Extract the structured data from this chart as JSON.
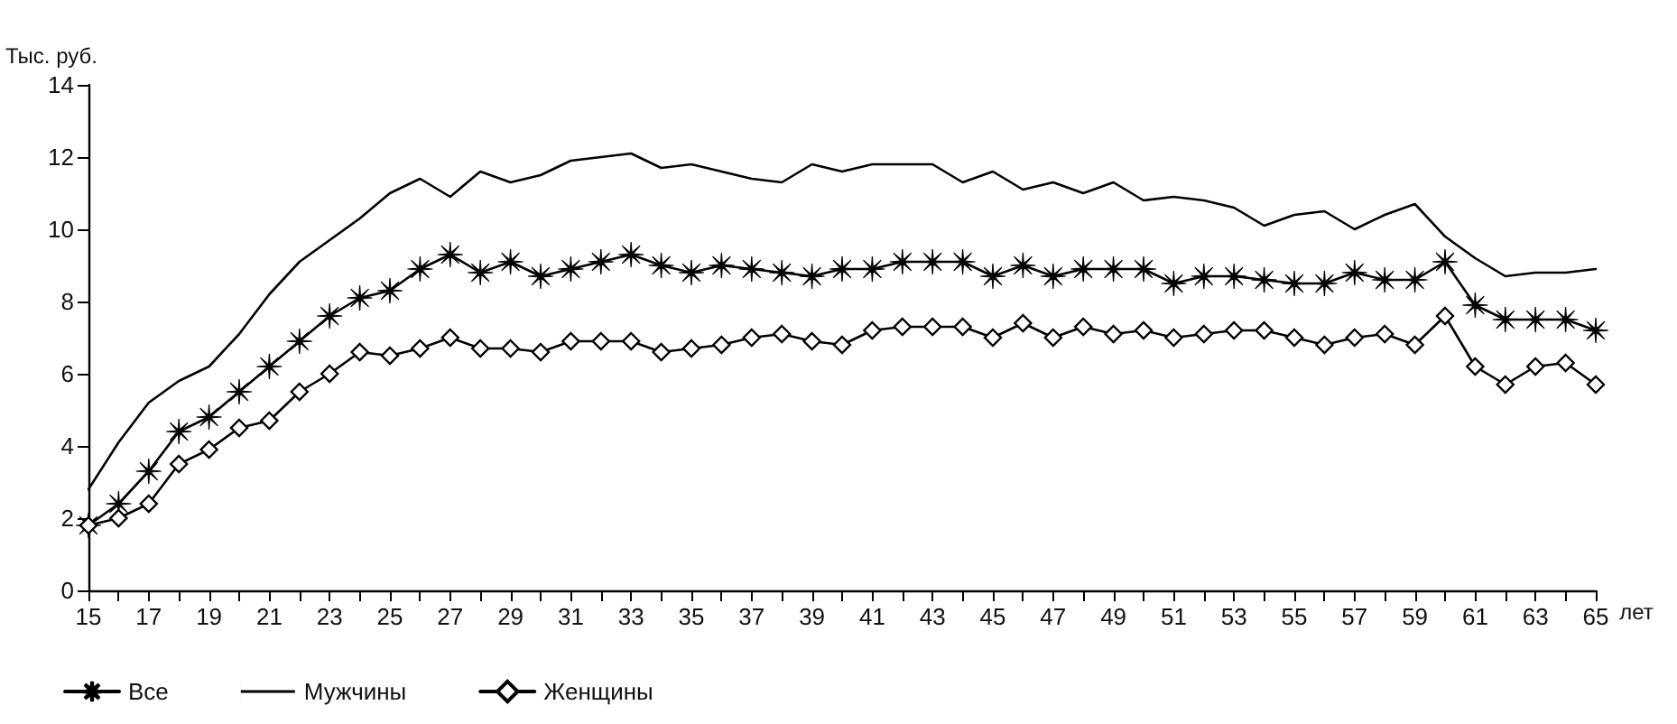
{
  "chart_data": {
    "type": "line",
    "ylabel": "Тыс. руб.",
    "xlabel": "лет",
    "x": [
      15,
      16,
      17,
      18,
      19,
      20,
      21,
      22,
      23,
      24,
      25,
      26,
      27,
      28,
      29,
      30,
      31,
      32,
      33,
      34,
      35,
      36,
      37,
      38,
      39,
      40,
      41,
      42,
      43,
      44,
      45,
      46,
      47,
      48,
      49,
      50,
      51,
      52,
      53,
      54,
      55,
      56,
      57,
      58,
      59,
      60,
      61,
      62,
      63,
      64,
      65
    ],
    "series": [
      {
        "name": "Все",
        "color": "#000000",
        "marker": "star",
        "values": [
          1.8,
          2.4,
          3.3,
          4.4,
          4.8,
          5.5,
          6.2,
          6.9,
          7.6,
          8.1,
          8.3,
          8.9,
          9.3,
          8.8,
          9.1,
          8.7,
          8.9,
          9.1,
          9.3,
          9.0,
          8.8,
          9.0,
          8.9,
          8.8,
          8.7,
          8.9,
          8.9,
          9.1,
          9.1,
          9.1,
          8.7,
          9.0,
          8.7,
          8.9,
          8.9,
          8.9,
          8.5,
          8.7,
          8.7,
          8.6,
          8.5,
          8.5,
          8.8,
          8.6,
          8.6,
          9.1,
          7.9,
          7.5,
          7.5,
          7.5,
          7.2
        ]
      },
      {
        "name": "Мужчины",
        "color": "#000000",
        "marker": "none",
        "values": [
          2.8,
          4.1,
          5.2,
          5.8,
          6.2,
          7.1,
          8.2,
          9.1,
          9.7,
          10.3,
          11.0,
          11.4,
          10.9,
          11.6,
          11.3,
          11.5,
          11.9,
          12.0,
          12.1,
          11.7,
          11.8,
          11.6,
          11.4,
          11.3,
          11.8,
          11.6,
          11.8,
          11.8,
          11.8,
          11.3,
          11.6,
          11.1,
          11.3,
          11.0,
          11.3,
          10.8,
          10.9,
          10.8,
          10.6,
          10.1,
          10.4,
          10.5,
          10.0,
          10.4,
          10.7,
          9.8,
          9.2,
          8.7,
          8.8,
          8.8,
          8.9
        ]
      },
      {
        "name": "Женщины",
        "color": "#000000",
        "marker": "diamond",
        "values": [
          1.8,
          2.0,
          2.4,
          3.5,
          3.9,
          4.5,
          4.7,
          5.5,
          6.0,
          6.6,
          6.5,
          6.7,
          7.0,
          6.7,
          6.7,
          6.6,
          6.9,
          6.9,
          6.9,
          6.6,
          6.7,
          6.8,
          7.0,
          7.1,
          6.9,
          6.8,
          7.2,
          7.3,
          7.3,
          7.3,
          7.0,
          7.4,
          7.0,
          7.3,
          7.1,
          7.2,
          7.0,
          7.1,
          7.2,
          7.2,
          7.0,
          6.8,
          7.0,
          7.1,
          6.8,
          7.6,
          6.2,
          5.7,
          6.2,
          6.3,
          5.7
        ]
      }
    ],
    "xlim": [
      15,
      65
    ],
    "xticks": [
      15,
      {
        "value": 16,
        "label": null
      },
      17,
      {
        "value": 18,
        "label": null
      },
      19,
      {
        "value": 20,
        "label": null
      },
      21,
      {
        "value": 22,
        "label": null
      },
      23,
      {
        "value": 24,
        "label": null
      },
      25,
      {
        "value": 26,
        "label": null
      },
      27,
      {
        "value": 28,
        "label": null
      },
      29,
      {
        "value": 30,
        "label": null
      },
      31,
      {
        "value": 32,
        "label": null
      },
      33,
      {
        "value": 34,
        "label": null
      },
      35,
      {
        "value": 36,
        "label": null
      },
      37,
      {
        "value": 38,
        "label": null
      },
      39,
      {
        "value": 40,
        "label": null
      },
      41,
      {
        "value": 42,
        "label": null
      },
      43,
      {
        "value": 44,
        "label": null
      },
      45,
      {
        "value": 46,
        "label": null
      },
      47,
      {
        "value": 48,
        "label": null
      },
      49,
      {
        "value": 50,
        "label": null
      },
      51,
      {
        "value": 52,
        "label": null
      },
      53,
      {
        "value": 54,
        "label": null
      },
      55,
      {
        "value": 56,
        "label": null
      },
      57,
      {
        "value": 58,
        "label": null
      },
      59,
      {
        "value": 60,
        "label": null
      },
      61,
      {
        "value": 62,
        "label": null
      },
      63,
      {
        "value": 64,
        "label": null
      },
      65
    ],
    "ylim": [
      0,
      14
    ],
    "yticks": [
      0,
      2,
      4,
      6,
      8,
      10,
      12,
      14
    ],
    "grid": false,
    "legend": "bottom left"
  }
}
